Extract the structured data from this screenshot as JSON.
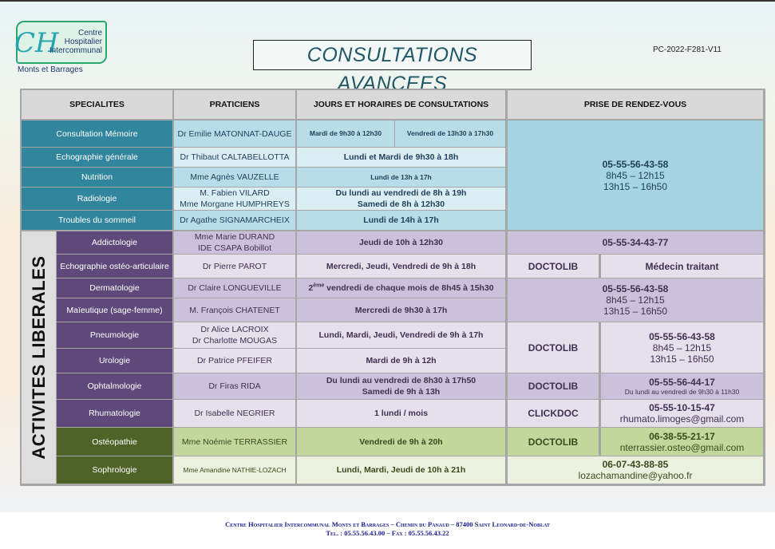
{
  "header": {
    "logo": {
      "line1": "Centre",
      "line2": "Hospitalier",
      "line3": "Intercommunal",
      "line4": "Monts et Barrages"
    },
    "title": "CONSULTATIONS AVANCEES",
    "reference": "PC-2022-F281-V11"
  },
  "columns": [
    "SPECIALITES",
    "PRATICIENS",
    "JOURS ET HORAIRES DE CONSULTATIONS",
    "PRISE DE RENDEZ-VOUS"
  ],
  "section_label": "ACTIVITES LIBERALES",
  "colors": {
    "teal_dark": "#31859c",
    "teal_light": "#b7dee8",
    "teal_pale": "#dbeef4",
    "teal_rdv": "#a5d5e2",
    "purple_dark": "#5f497a",
    "purple_light": "#ccc1da",
    "purple_pale": "#e5e0ec",
    "green_dark": "#4f6228",
    "green_light": "#c3d69b",
    "green_pale": "#ebf1de"
  },
  "section1": [
    {
      "specialite": "Consultation Mémoire",
      "praticiens": [
        "Dr Emilie MATONNAT-DAUGE"
      ],
      "horaires": [
        "Mardi de 9h30 à 12h30",
        "Vendredi de 13h30 à 17h30"
      ]
    },
    {
      "specialite": "Echographie générale",
      "praticiens": [
        "Dr Thibaut CALTABELLOTTA"
      ],
      "horaires": [
        "Lundi et Mardi  de 9h30 à 18h"
      ]
    },
    {
      "specialite": "Nutrition",
      "praticiens": [
        "Mme Agnès VAUZELLE"
      ],
      "horaires": [
        "Lundi de 13h à 17h"
      ]
    },
    {
      "specialite": "Radiologie",
      "praticiens": [
        "M. Fabien VILARD",
        "Mme Morgane HUMPHREYS"
      ],
      "horaires": [
        "Du lundi au vendredi de 8h à 19h",
        "Samedi de 8h à 12h30"
      ]
    },
    {
      "specialite": "Troubles du sommeil",
      "praticiens": [
        "Dr Agathe SIGNAMARCHEIX"
      ],
      "horaires": [
        "Lundi  de 14h à 17h"
      ]
    }
  ],
  "section1_rdv": {
    "phone": "05-55-56-43-58",
    "hours": [
      "8h45 – 12h15",
      "13h15 – 16h50"
    ]
  },
  "section2": [
    {
      "specialite": "Addictologie",
      "praticiens": [
        "Mme Marie DURAND",
        "IDE CSAPA Bobillot"
      ],
      "horaires": [
        "Jeudi de 10h à 12h30"
      ]
    },
    {
      "specialite": "Echographie ostéo-articulaire",
      "praticiens": [
        "Dr Pierre PAROT"
      ],
      "horaires": [
        "Mercredi, Jeudi, Vendredi de 9h à 18h"
      ]
    },
    {
      "specialite": "Dermatologie",
      "praticiens": [
        "Dr Claire LONGUEVILLE"
      ],
      "horaire_ordinal": "2",
      "horaire_sup": "ème",
      "horaire_rest": " vendredi de chaque mois de 8h45 à 15h30"
    },
    {
      "specialite": "Maïeutique (sage-femme)",
      "praticiens": [
        "M. François CHATENET"
      ],
      "horaires": [
        "Mercredi de 9h30 à 17h"
      ]
    },
    {
      "specialite": "Pneumologie",
      "praticiens": [
        "Dr Alice LACROIX",
        "Dr Charlotte MOUGAS"
      ],
      "horaires": [
        "Lundi, Mardi, Jeudi, Vendredi de 9h à 17h"
      ]
    },
    {
      "specialite": "Urologie",
      "praticiens": [
        "Dr Patrice PFEIFER"
      ],
      "horaires": [
        "Mardi de 9h à 12h"
      ]
    },
    {
      "specialite": "Ophtalmologie",
      "praticiens": [
        "Dr Firas RIDA"
      ],
      "horaires": [
        "Du lundi au vendredi de 8h30 à 17h50",
        "Samedi de 9h à 13h"
      ]
    },
    {
      "specialite": "Rhumatologie",
      "praticiens": [
        "Dr Isabelle NEGRIER"
      ],
      "horaires": [
        "1 lundi / mois"
      ]
    },
    {
      "specialite": "Ostéopathie",
      "praticiens": [
        "Mme Noémie TERRASSIER"
      ],
      "horaires": [
        "Vendredi de 9h à 20h"
      ]
    },
    {
      "specialite": "Sophrologie",
      "praticiens": [
        "Mme Amandine NATHIE-LOZACH"
      ],
      "horaires": [
        "Lundi, Mardi, Jeudi de 10h à 21h"
      ]
    }
  ],
  "section2_rdv": {
    "addictologie": {
      "phone": "05-55-34-43-77"
    },
    "echographie": {
      "platform": "DOCTOLIB",
      "other": "Médecin traitant"
    },
    "dermato_maieutique": {
      "phone": "05-55-56-43-58",
      "hours": [
        "8h45 – 12h15",
        "13h15 – 16h50"
      ]
    },
    "pneumo_urologie": {
      "platform": "DOCTOLIB",
      "phone": "05-55-56-43-58",
      "hours": [
        "8h45 – 12h15",
        "13h15 – 16h50"
      ]
    },
    "ophtalmologie": {
      "platform": "DOCTOLIB",
      "phone": "05-55-56-44-17",
      "note": "Du lundi au vendredi de 9h30 à 11h30"
    },
    "rhumatologie": {
      "platform": "CLICKDOC",
      "phone": "05-55-10-15-47",
      "email": "rhumato.limoges@gmail.com"
    },
    "osteopathie": {
      "platform": "DOCTOLIB",
      "phone": "06-38-55-21-17",
      "email": "nterrassier.osteo@gmail.com"
    },
    "sophrologie": {
      "phone": "06-07-43-88-85",
      "email": "lozachamandine@yahoo.fr"
    }
  },
  "footer": {
    "line1": "Centre Hospitalier Intercommunal Monts et Barrages – Chemin du Panaud – 87400 Saint Leonard-de-Noblat",
    "line2": "Tel. : 05.55.56.43.00 – Fax : 05.55.56.43.22"
  }
}
